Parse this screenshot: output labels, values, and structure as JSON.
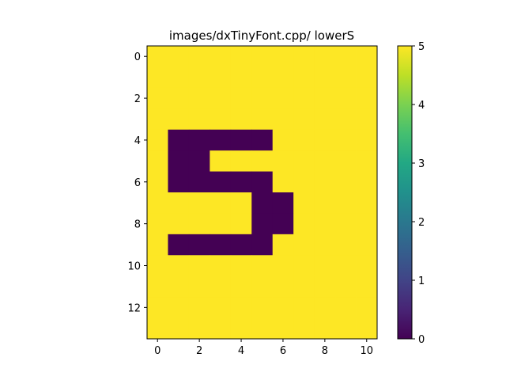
{
  "chart_data": {
    "type": "heatmap",
    "title": "images/dxTinyFont.cpp/ lowerS",
    "xlabel": "",
    "ylabel": "",
    "x_ticks": [
      0,
      2,
      4,
      6,
      8,
      10
    ],
    "y_ticks": [
      0,
      2,
      4,
      6,
      8,
      10,
      12
    ],
    "xlim": [
      -0.5,
      10.5
    ],
    "ylim": [
      13.5,
      -0.5
    ],
    "colormap": "viridis",
    "color_range": [
      0,
      5
    ],
    "colorbar_ticks": [
      0,
      1,
      2,
      3,
      4,
      5
    ],
    "colors": {
      "low": "#440154",
      "high": "#fde725"
    },
    "grid": false,
    "values": [
      [
        5,
        5,
        5,
        5,
        5,
        5,
        5,
        5,
        5,
        5,
        5
      ],
      [
        5,
        5,
        5,
        5,
        5,
        5,
        5,
        5,
        5,
        5,
        5
      ],
      [
        5,
        5,
        5,
        5,
        5,
        5,
        5,
        5,
        5,
        5,
        5
      ],
      [
        5,
        5,
        5,
        5,
        5,
        5,
        5,
        5,
        5,
        5,
        5
      ],
      [
        5,
        0,
        0,
        0,
        0,
        0,
        5,
        5,
        5,
        5,
        5
      ],
      [
        5,
        0,
        0,
        5,
        5,
        5,
        5,
        5,
        5,
        5,
        5
      ],
      [
        5,
        0,
        0,
        0,
        0,
        0,
        5,
        5,
        5,
        5,
        5
      ],
      [
        5,
        5,
        5,
        5,
        5,
        0,
        0,
        5,
        5,
        5,
        5
      ],
      [
        5,
        5,
        5,
        5,
        5,
        0,
        0,
        5,
        5,
        5,
        5
      ],
      [
        5,
        0,
        0,
        0,
        0,
        0,
        5,
        5,
        5,
        5,
        5
      ],
      [
        5,
        5,
        5,
        5,
        5,
        5,
        5,
        5,
        5,
        5,
        5
      ],
      [
        5,
        5,
        5,
        5,
        5,
        5,
        5,
        5,
        5,
        5,
        5
      ],
      [
        5,
        5,
        5,
        5,
        5,
        5,
        5,
        5,
        5,
        5,
        5
      ],
      [
        5,
        5,
        5,
        5,
        5,
        5,
        5,
        5,
        5,
        5,
        5
      ]
    ]
  }
}
